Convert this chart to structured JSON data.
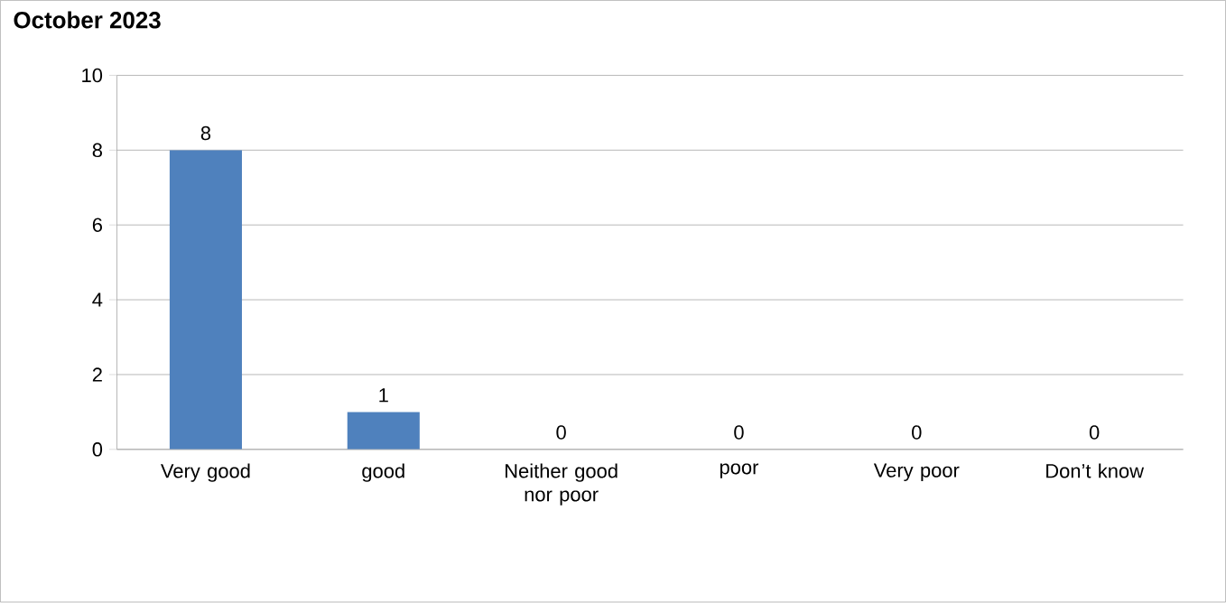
{
  "chart_data": {
    "type": "bar",
    "title": "October 2023",
    "categories": [
      "Very good",
      "good",
      "Neither good nor poor",
      "poor",
      "Very poor",
      "Don’t know"
    ],
    "values": [
      8,
      1,
      0,
      0,
      0,
      0
    ],
    "color": "#4f81bd",
    "ylim": [
      0,
      10
    ],
    "yticks": [
      0,
      2,
      4,
      6,
      8,
      10
    ],
    "grid": "y",
    "data_labels": true
  }
}
